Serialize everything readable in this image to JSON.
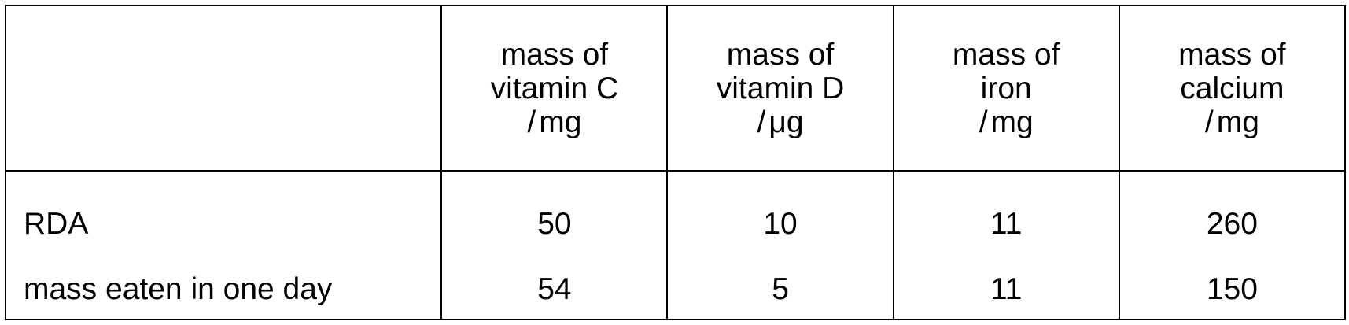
{
  "table": {
    "columns": [
      {
        "lines": [
          "mass of",
          "vitamin C"
        ],
        "unit": "mg"
      },
      {
        "lines": [
          "mass of",
          "vitamin D"
        ],
        "unit": "μg"
      },
      {
        "lines": [
          "mass of",
          "iron"
        ],
        "unit": "mg"
      },
      {
        "lines": [
          "mass of",
          "calcium"
        ],
        "unit": "mg"
      }
    ],
    "rows": [
      {
        "label": "RDA",
        "values": [
          "50",
          "10",
          "11",
          "260"
        ]
      },
      {
        "label": "mass eaten in one day",
        "values": [
          "54",
          "5",
          "11",
          "150"
        ]
      }
    ]
  }
}
